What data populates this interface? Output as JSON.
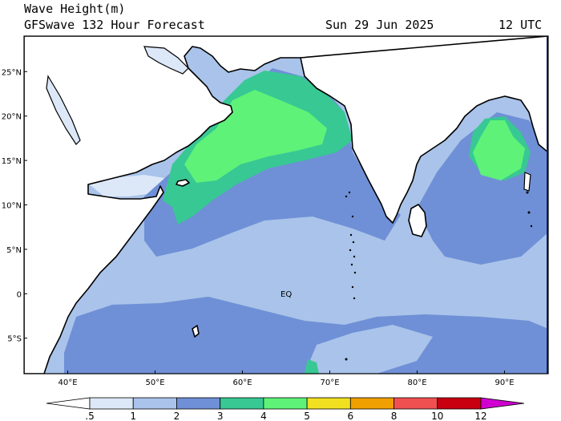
{
  "header": {
    "title": "Wave Height(m)",
    "model": "GFSwave 132 Hour Forecast",
    "date": "Sun 29 Jun 2025",
    "time": "12 UTC"
  },
  "map": {
    "lon_range": [
      35,
      95
    ],
    "lat_range": [
      -9,
      29
    ],
    "lon_ticks": [
      "40°E",
      "50°E",
      "60°E",
      "70°E",
      "80°E",
      "90°E"
    ],
    "lat_ticks": [
      "25°N",
      "20°N",
      "15°N",
      "10°N",
      "5°N",
      "0",
      "5°S"
    ],
    "equator_label": "EQ",
    "land_color": "#ffffff"
  },
  "colorbar": {
    "labels": [
      ".5",
      "1",
      "2",
      "3",
      "4",
      "5",
      "6",
      "8",
      "10",
      "12"
    ],
    "colors": [
      "#ffffff",
      "#dce8f8",
      "#a9c3ea",
      "#6f90d6",
      "#38c894",
      "#5ef278",
      "#f0e020",
      "#f0a000",
      "#f05050",
      "#c80010",
      "#d000d0"
    ]
  }
}
